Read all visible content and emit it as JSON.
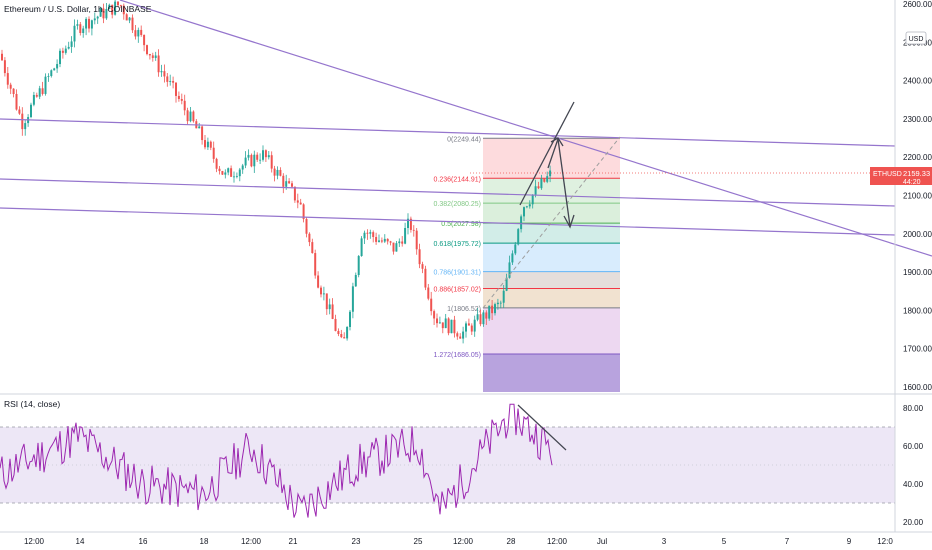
{
  "header": {
    "symbol_title": "Ethereum / U.S. Dollar, 1h, COINBASE"
  },
  "price_axis": {
    "currency_label": "USD",
    "ticks": [
      1600,
      1700,
      1800,
      1900,
      2000,
      2100,
      2200,
      2300,
      2400,
      2500,
      2600
    ],
    "tick_labels": [
      "1600.00",
      "1700.00",
      "1800.00",
      "1900.00",
      "2000.00",
      "2100.00",
      "2200.00",
      "2300.00",
      "2400.00",
      "2500.00",
      "2600.00"
    ],
    "current_symbol": "ETHUSD",
    "current_price": "2159.33",
    "countdown": "44:20"
  },
  "time_axis": {
    "labels": [
      "12:00",
      "14",
      "16",
      "18",
      "12:00",
      "21",
      "23",
      "25",
      "12:00",
      "28",
      "12:00",
      "Jul",
      "3",
      "5",
      "7",
      "9",
      "12:0"
    ]
  },
  "fibonacci": {
    "levels": [
      {
        "ratio": "0",
        "price": 2249.44,
        "label": "0(2249.44)",
        "line": "#787b86",
        "fill": "rgba(242,54,69,0.18)"
      },
      {
        "ratio": "0.236",
        "price": 2144.91,
        "label": "0.236(2144.91)",
        "line": "#f23645",
        "fill": "rgba(129,199,132,0.25)"
      },
      {
        "ratio": "0.382",
        "price": 2080.25,
        "label": "0.382(2080.25)",
        "line": "#81c784",
        "fill": "rgba(76,175,80,0.20)"
      },
      {
        "ratio": "0.5",
        "price": 2027.98,
        "label": "0.5(2027.98)",
        "line": "#4caf50",
        "fill": "rgba(8,153,129,0.18)"
      },
      {
        "ratio": "0.618",
        "price": 1975.72,
        "label": "0.618(1975.72)",
        "line": "#089981",
        "fill": "rgba(100,181,246,0.25)"
      },
      {
        "ratio": "0.786",
        "price": 1901.31,
        "label": "0.786(1901.31)",
        "line": "#64b5f6",
        "fill": "rgba(161,136,127,0.28)"
      },
      {
        "ratio": "0.886",
        "price": 1857.02,
        "label": "0.886(1857.02)",
        "line": "#f23645",
        "fill": "rgba(225,190,150,0.45)"
      },
      {
        "ratio": "1",
        "price": 1806.52,
        "label": "1(1806.52)",
        "line": "#787b86",
        "fill": "rgba(156,39,176,0.18)"
      },
      {
        "ratio": "1.272",
        "price": 1686.05,
        "label": "1.272(1686.05)",
        "line": "#7e57c2",
        "fill": "rgba(126,87,194,0.55)"
      }
    ]
  },
  "rsi": {
    "title": "RSI (14, close)",
    "ticks": [
      20,
      40,
      60,
      80
    ],
    "tick_labels": [
      "20.00",
      "40.00",
      "60.00",
      "80.00"
    ],
    "upper_band": 70,
    "lower_band": 30
  },
  "colors": {
    "up": "#26a69a",
    "down": "#ef5350",
    "trendline": "#9575cd",
    "rsi_line": "#9c27b0",
    "rsi_band": "#ede7f6",
    "price_badge": "#ef5350",
    "arrow": "#434651"
  },
  "chart_data": {
    "type": "candlestick",
    "symbol": "ETHUSD",
    "interval": "1h",
    "exchange": "COINBASE",
    "y_range": [
      1580,
      2620
    ],
    "price_path_keypoints": [
      {
        "x_label": "start",
        "price": 2470
      },
      {
        "x_label": "12:00",
        "price": 2290
      },
      {
        "x_label": "14",
        "price": 2540
      },
      {
        "x_label": "16",
        "price": 2600
      },
      {
        "x_label": "16b",
        "price": 2410
      },
      {
        "x_label": "18",
        "price": 2150
      },
      {
        "x_label": "12:00",
        "price": 2210
      },
      {
        "x_label": "21",
        "price": 2080
      },
      {
        "x_label": "22",
        "price": 1880
      },
      {
        "x_label": "22b",
        "price": 1700
      },
      {
        "x_label": "23",
        "price": 2010
      },
      {
        "x_label": "24",
        "price": 1960
      },
      {
        "x_label": "25",
        "price": 2030
      },
      {
        "x_label": "26",
        "price": 1780
      },
      {
        "x_label": "12:00",
        "price": 1740
      },
      {
        "x_label": "28",
        "price": 1820
      },
      {
        "x_label": "28b",
        "price": 2070
      },
      {
        "x_label": "12:00",
        "price": 2159.33
      }
    ],
    "last_price": 2159.33,
    "rsi_keypoints": [
      {
        "x_label": "start",
        "value": 45
      },
      {
        "x_label": "14",
        "value": 65
      },
      {
        "x_label": "16",
        "value": 40
      },
      {
        "x_label": "18",
        "value": 35
      },
      {
        "x_label": "12:00",
        "value": 60
      },
      {
        "x_label": "21",
        "value": 25
      },
      {
        "x_label": "23",
        "value": 50
      },
      {
        "x_label": "25",
        "value": 62
      },
      {
        "x_label": "26",
        "value": 25
      },
      {
        "x_label": "28",
        "value": 78
      },
      {
        "x_label": "12:00",
        "value": 58
      }
    ]
  }
}
